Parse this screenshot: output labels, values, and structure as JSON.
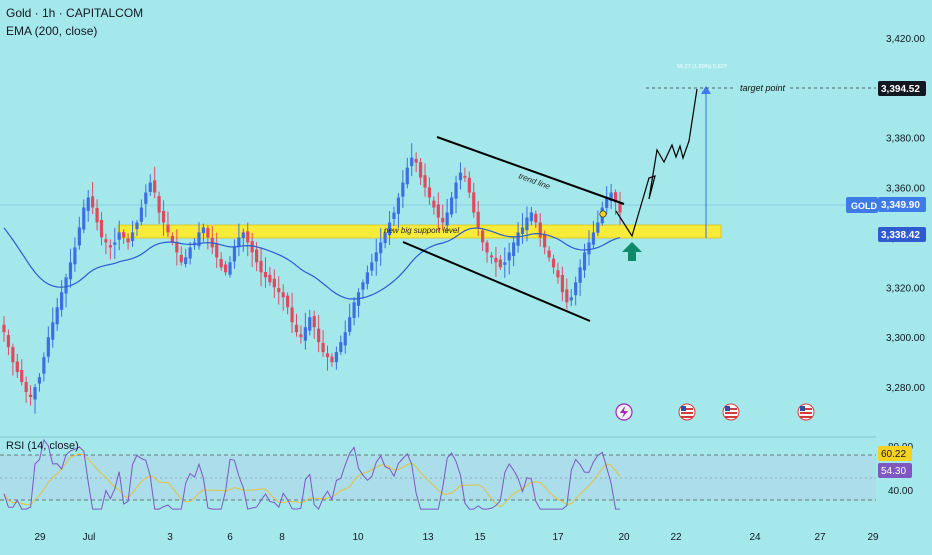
{
  "header": {
    "symbol_line": "Gold · 1h · CAPITALCOM",
    "indicator_line": "EMA (200, close)",
    "rsi_label": "RSI (14, close)"
  },
  "annotations": {
    "support_label": "new big support level",
    "trend_label": "trend line",
    "target_label": "target point",
    "measure_label": "56.27 (1.69%) 5,627"
  },
  "price_badges": {
    "target": "3,394.52",
    "gold_symbol": "GOLD",
    "gold_price": "3,349.90",
    "ema": "3,338.42"
  },
  "rsi_badges": {
    "upper": "60.22",
    "lower": "54.30"
  },
  "event_icons": [
    "lightning-icon",
    "us-flag-icon",
    "us-flag-icon",
    "us-flag-icon"
  ],
  "colors": {
    "background": "#a5e8ec",
    "up_candle": "#3c6fe0",
    "down_candle": "#e04a5f",
    "ema": "#2f5bd0",
    "support_zone": "#f8ec3a",
    "projection": "#000000",
    "target_arrow": "#3d7be8",
    "rsi_line": "#7e57c2",
    "rsi_ma": "#e6c23a",
    "green_arrow": "#0d8a6a"
  },
  "chart_data": [
    {
      "type": "candlestick",
      "title": "Gold · 1h · CAPITALCOM",
      "x_ticks": [
        "29",
        "Jul",
        "3",
        "6",
        "8",
        "10",
        "13",
        "15",
        "17",
        "20",
        "22",
        "24",
        "27",
        "29"
      ],
      "y_ticks": [
        3280,
        3300,
        3320,
        3340,
        3360,
        3380,
        3400,
        3420
      ],
      "y_tick_labels": [
        "3,280.00",
        "3,300.00",
        "3,320.00",
        "3,340.00",
        "3,360.00",
        "3,380.00",
        "3,400.00",
        "3,420.00"
      ],
      "ylim": [
        3270,
        3428
      ],
      "series": [
        {
          "name": "Gold",
          "approx_closes": [
            3302,
            3296,
            3290,
            3286,
            3282,
            3278,
            3276,
            3280,
            3284,
            3292,
            3300,
            3306,
            3312,
            3318,
            3324,
            3330,
            3336,
            3344,
            3352,
            3356,
            3352,
            3346,
            3340,
            3338,
            3336,
            3338,
            3342,
            3340,
            3338,
            3342,
            3346,
            3352,
            3358,
            3362,
            3358,
            3350,
            3346,
            3342,
            3338,
            3334,
            3330,
            3332,
            3336,
            3338,
            3342,
            3344,
            3340,
            3336,
            3332,
            3328,
            3326,
            3330,
            3336,
            3340,
            3342,
            3338,
            3334,
            3330,
            3326,
            3324,
            3322,
            3320,
            3318,
            3316,
            3312,
            3306,
            3302,
            3300,
            3304,
            3308,
            3304,
            3298,
            3294,
            3292,
            3290,
            3294,
            3298,
            3302,
            3308,
            3314,
            3318,
            3322,
            3326,
            3330,
            3334,
            3338,
            3342,
            3346,
            3350,
            3356,
            3362,
            3368,
            3372,
            3370,
            3364,
            3360,
            3356,
            3352,
            3348,
            3346,
            3350,
            3356,
            3362,
            3366,
            3364,
            3358,
            3350,
            3344,
            3338,
            3334,
            3332,
            3330,
            3328,
            3330,
            3334,
            3338,
            3342,
            3344,
            3348,
            3350,
            3346,
            3340,
            3336,
            3332,
            3328,
            3324,
            3318,
            3314,
            3316,
            3322,
            3328,
            3334,
            3338,
            3342,
            3346,
            3352,
            3356,
            3358,
            3354,
            3350
          ]
        }
      ],
      "ema": {
        "name": "EMA (200, close)",
        "latest": 3338.42
      },
      "support_zone": [
        3336,
        3342
      ],
      "trend_channel": {
        "upper": [
          [
            3373,
            3348
          ]
        ],
        "lower": [
          [
            3335,
            3308
          ]
        ]
      },
      "projection_path": [
        3338.42,
        3356,
        3354,
        3368,
        3364,
        3370,
        3394.52
      ],
      "target": 3394.52,
      "last_price": 3349.9
    },
    {
      "type": "line",
      "title": "RSI (14, close)",
      "y_ticks": [
        40,
        60.22,
        80
      ],
      "y_tick_labels": [
        "40.00",
        "60.22",
        "80.00"
      ],
      "ylim": [
        34,
        86
      ],
      "levels": [
        70,
        50,
        30
      ],
      "series": [
        {
          "name": "RSI",
          "latest": 54.3
        },
        {
          "name": "RSI MA",
          "latest": 60.22
        }
      ]
    }
  ]
}
